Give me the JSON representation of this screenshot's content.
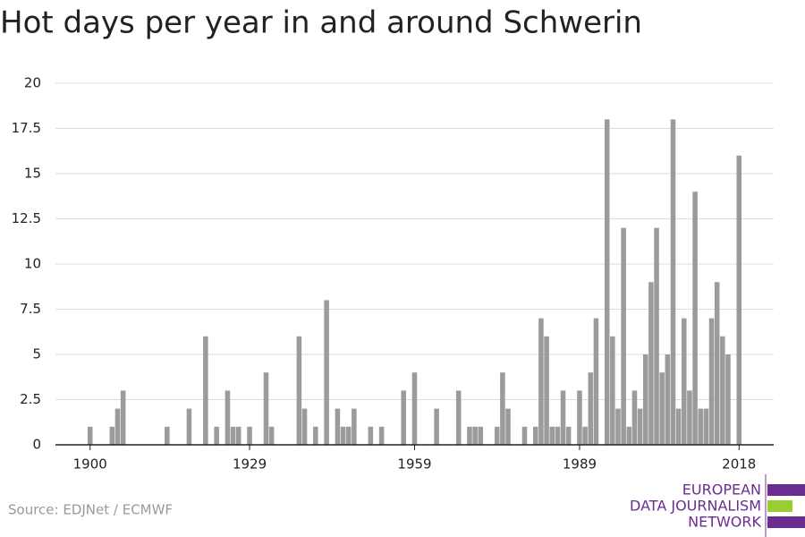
{
  "chart_data": {
    "type": "bar",
    "title": "Hot days per year in and around Schwerin",
    "x": [
      1900,
      1904,
      1905,
      1906,
      1914,
      1918,
      1921,
      1923,
      1925,
      1926,
      1927,
      1929,
      1932,
      1933,
      1938,
      1939,
      1941,
      1943,
      1945,
      1946,
      1947,
      1948,
      1951,
      1953,
      1957,
      1959,
      1963,
      1967,
      1969,
      1970,
      1971,
      1974,
      1975,
      1976,
      1979,
      1981,
      1982,
      1983,
      1984,
      1985,
      1986,
      1987,
      1989,
      1990,
      1991,
      1992,
      1994,
      1995,
      1996,
      1997,
      1998,
      1999,
      2000,
      2001,
      2002,
      2003,
      2004,
      2005,
      2006,
      2007,
      2008,
      2009,
      2010,
      2011,
      2012,
      2013,
      2014,
      2015,
      2016,
      2018
    ],
    "values": [
      1,
      1,
      2,
      3,
      1,
      2,
      6,
      1,
      3,
      1,
      1,
      1,
      4,
      1,
      6,
      2,
      1,
      8,
      2,
      1,
      1,
      2,
      1,
      1,
      3,
      4,
      2,
      3,
      1,
      1,
      1,
      1,
      4,
      2,
      1,
      1,
      7,
      6,
      1,
      1,
      3,
      1,
      3,
      1,
      4,
      7,
      18,
      6,
      2,
      12,
      1,
      3,
      2,
      5,
      9,
      12,
      4,
      5,
      18,
      2,
      7,
      3,
      14,
      2,
      2,
      7,
      9,
      6,
      5,
      16
    ],
    "color": "#9b9b9b",
    "xlim": [
      1893.7,
      2024.3
    ],
    "xticks": [
      1900,
      1929,
      1959,
      1989,
      2018
    ],
    "ylim": [
      0,
      20
    ],
    "yticks": [
      0,
      2.5,
      5,
      7.5,
      10,
      12.5,
      15,
      17.5,
      20
    ],
    "grid": true
  },
  "source": "Source: EDJNet / ECMWF",
  "logo": [
    "EUROPEAN",
    "DATA JOURNALISM",
    "NETWORK"
  ]
}
